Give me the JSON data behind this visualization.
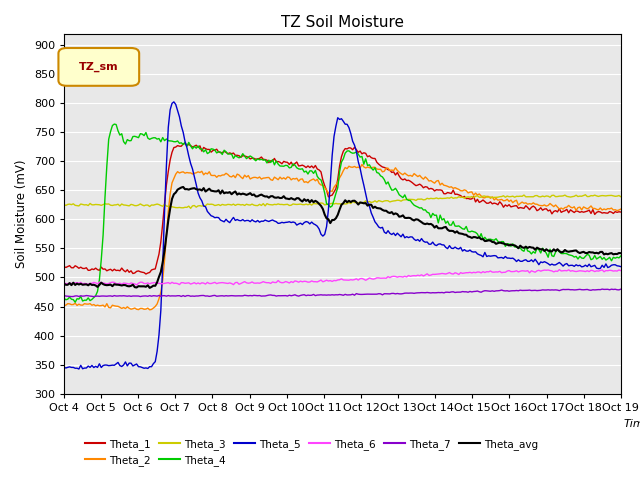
{
  "title": "TZ Soil Moisture",
  "xlabel": "Time",
  "ylabel": "Soil Moisture (mV)",
  "ylim": [
    300,
    920
  ],
  "yticks": [
    300,
    350,
    400,
    450,
    500,
    550,
    600,
    650,
    700,
    750,
    800,
    850,
    900
  ],
  "x_labels": [
    "Oct 4",
    "Oct 5",
    "Oct 6",
    "Oct 7",
    "Oct 8",
    "Oct 9",
    "Oct 10",
    "Oct 11",
    "Oct 12",
    "Oct 13",
    "Oct 14",
    "Oct 15",
    "Oct 16",
    "Oct 17",
    "Oct 18",
    "Oct 19"
  ],
  "legend_label": "TZ_sm",
  "series_colors": {
    "Theta_1": "#cc0000",
    "Theta_2": "#ff8800",
    "Theta_3": "#cccc00",
    "Theta_4": "#00cc00",
    "Theta_5": "#0000cc",
    "Theta_6": "#ff44ff",
    "Theta_7": "#8800cc",
    "Theta_avg": "#000000"
  },
  "plot_bg_color": "#e8e8e8"
}
